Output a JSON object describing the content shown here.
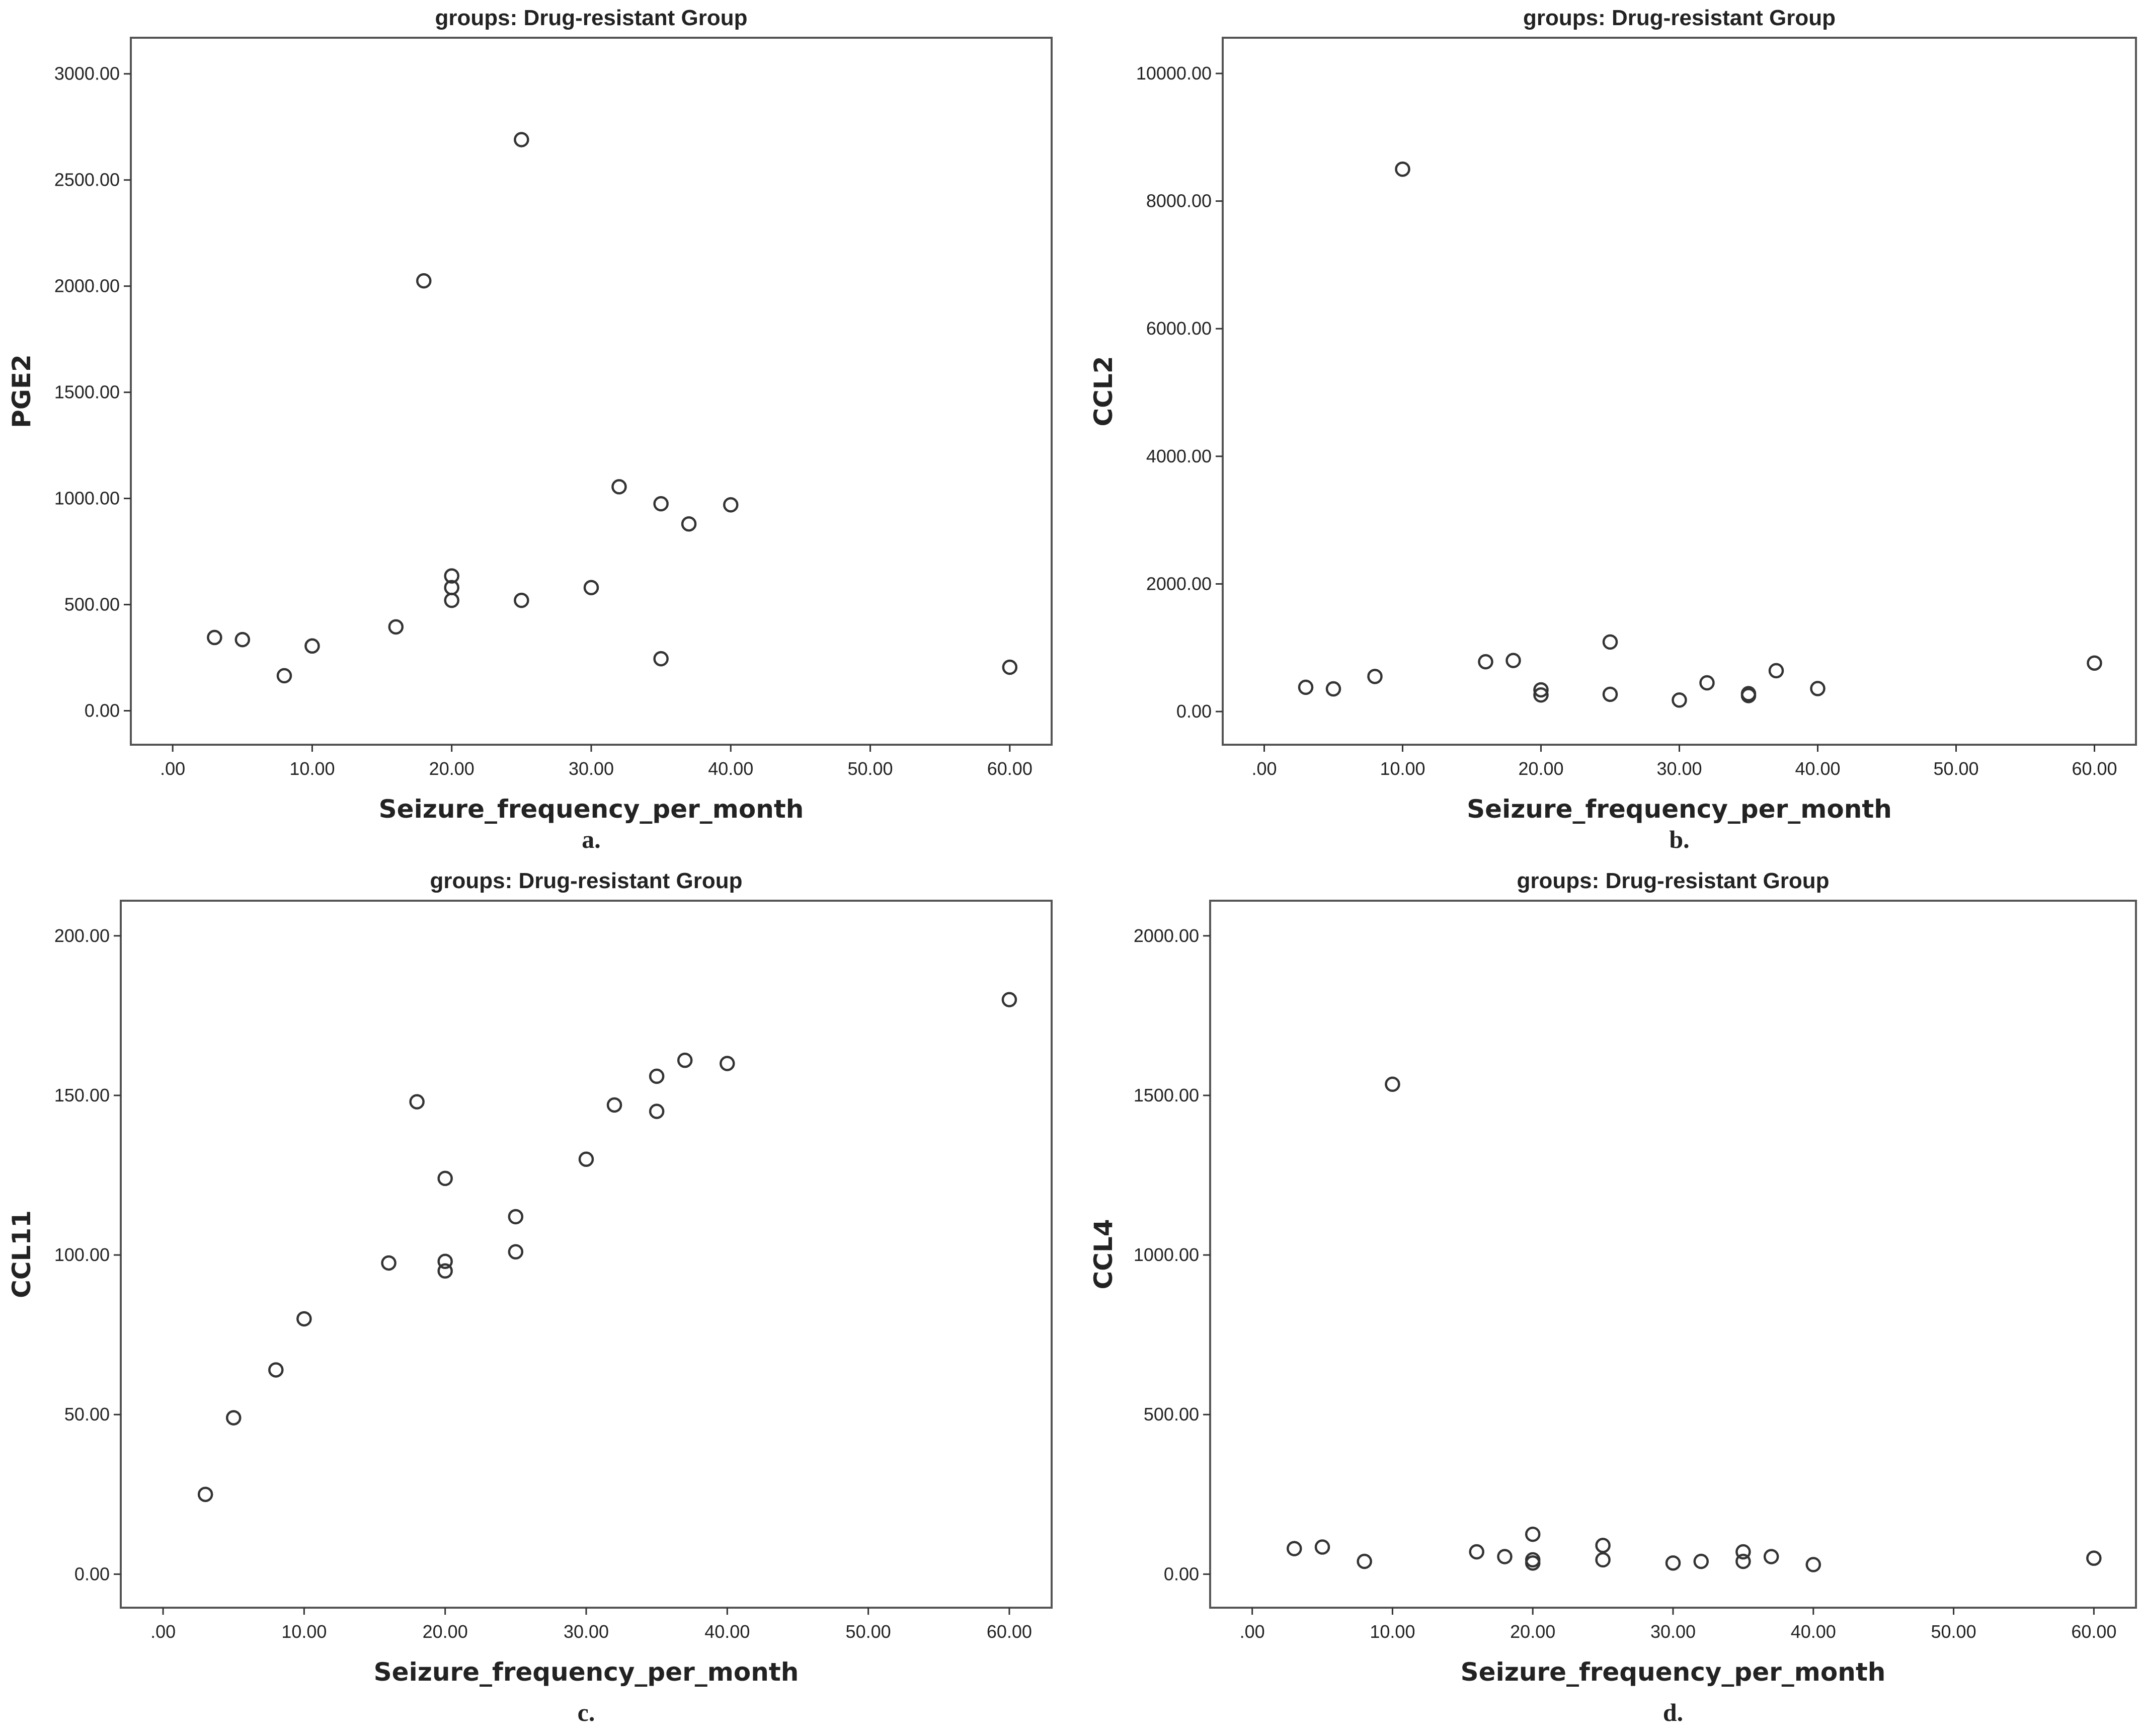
{
  "chart_data": [
    {
      "type": "scatter",
      "title": "groups: Drug-resistant Group",
      "xlabel": "Seizure_frequency_per_month",
      "ylabel": "PGE2",
      "caption": "a.",
      "xlim": [
        -3,
        63
      ],
      "ylim": [
        -160,
        3170
      ],
      "xticks": [
        0,
        10,
        20,
        30,
        40,
        50,
        60
      ],
      "xtick_labels": [
        ".00",
        "10.00",
        "20.00",
        "30.00",
        "40.00",
        "50.00",
        "60.00"
      ],
      "yticks": [
        0,
        500,
        1000,
        1500,
        2000,
        2500,
        3000
      ],
      "ytick_labels": [
        "0.00",
        "500.00",
        "1000.00",
        "1500.00",
        "2000.00",
        "2500.00",
        "3000.00"
      ],
      "points": [
        {
          "x": 3,
          "y": 345
        },
        {
          "x": 5,
          "y": 335
        },
        {
          "x": 8,
          "y": 165
        },
        {
          "x": 10,
          "y": 305
        },
        {
          "x": 16,
          "y": 395
        },
        {
          "x": 18,
          "y": 2025
        },
        {
          "x": 20,
          "y": 635
        },
        {
          "x": 20,
          "y": 580
        },
        {
          "x": 20,
          "y": 520
        },
        {
          "x": 25,
          "y": 2690
        },
        {
          "x": 25,
          "y": 520
        },
        {
          "x": 30,
          "y": 580
        },
        {
          "x": 32,
          "y": 1055
        },
        {
          "x": 35,
          "y": 975
        },
        {
          "x": 35,
          "y": 245
        },
        {
          "x": 37,
          "y": 880
        },
        {
          "x": 40,
          "y": 970
        },
        {
          "x": 60,
          "y": 205
        }
      ]
    },
    {
      "type": "scatter",
      "title": "groups: Drug-resistant Group",
      "xlabel": "Seizure_frequency_per_month",
      "ylabel": "CCL2",
      "caption": "b.",
      "xlim": [
        -3,
        63
      ],
      "ylim": [
        -520,
        10560
      ],
      "xticks": [
        0,
        10,
        20,
        30,
        40,
        50,
        60
      ],
      "xtick_labels": [
        ".00",
        "10.00",
        "20.00",
        "30.00",
        "40.00",
        "50.00",
        "60.00"
      ],
      "yticks": [
        0,
        2000,
        4000,
        6000,
        8000,
        10000
      ],
      "ytick_labels": [
        "0.00",
        "2000.00",
        "4000.00",
        "6000.00",
        "8000.00",
        "10000.00"
      ],
      "points": [
        {
          "x": 3,
          "y": 380
        },
        {
          "x": 5,
          "y": 355
        },
        {
          "x": 8,
          "y": 550
        },
        {
          "x": 10,
          "y": 8500
        },
        {
          "x": 16,
          "y": 780
        },
        {
          "x": 18,
          "y": 800
        },
        {
          "x": 20,
          "y": 340
        },
        {
          "x": 20,
          "y": 260
        },
        {
          "x": 25,
          "y": 1090
        },
        {
          "x": 25,
          "y": 270
        },
        {
          "x": 30,
          "y": 180
        },
        {
          "x": 32,
          "y": 450
        },
        {
          "x": 35,
          "y": 280
        },
        {
          "x": 35,
          "y": 250
        },
        {
          "x": 37,
          "y": 640
        },
        {
          "x": 40,
          "y": 360
        },
        {
          "x": 60,
          "y": 760
        }
      ]
    },
    {
      "type": "scatter",
      "title": "groups: Drug-resistant Group",
      "xlabel": "Seizure_frequency_per_month",
      "ylabel": "CCL11",
      "caption": "c.",
      "xlim": [
        -3,
        63
      ],
      "ylim": [
        -10.5,
        211
      ],
      "xticks": [
        0,
        10,
        20,
        30,
        40,
        50,
        60
      ],
      "xtick_labels": [
        ".00",
        "10.00",
        "20.00",
        "30.00",
        "40.00",
        "50.00",
        "60.00"
      ],
      "yticks": [
        0,
        50,
        100,
        150,
        200
      ],
      "ytick_labels": [
        "0.00",
        "50.00",
        "100.00",
        "150.00",
        "200.00"
      ],
      "points": [
        {
          "x": 3,
          "y": 25
        },
        {
          "x": 5,
          "y": 49
        },
        {
          "x": 8,
          "y": 64
        },
        {
          "x": 10,
          "y": 80
        },
        {
          "x": 16,
          "y": 97.5
        },
        {
          "x": 18,
          "y": 148
        },
        {
          "x": 20,
          "y": 124
        },
        {
          "x": 20,
          "y": 98
        },
        {
          "x": 20,
          "y": 95
        },
        {
          "x": 25,
          "y": 112
        },
        {
          "x": 25,
          "y": 101
        },
        {
          "x": 30,
          "y": 130
        },
        {
          "x": 32,
          "y": 147
        },
        {
          "x": 35,
          "y": 156
        },
        {
          "x": 35,
          "y": 145
        },
        {
          "x": 37,
          "y": 161
        },
        {
          "x": 40,
          "y": 160
        },
        {
          "x": 60,
          "y": 180
        }
      ]
    },
    {
      "type": "scatter",
      "title": "groups: Drug-resistant Group",
      "xlabel": "Seizure_frequency_per_month",
      "ylabel": "CCL4",
      "caption": "d.",
      "xlim": [
        -3,
        63
      ],
      "ylim": [
        -105,
        2110
      ],
      "xticks": [
        0,
        10,
        20,
        30,
        40,
        50,
        60
      ],
      "xtick_labels": [
        ".00",
        "10.00",
        "20.00",
        "30.00",
        "40.00",
        "50.00",
        "60.00"
      ],
      "yticks": [
        0,
        500,
        1000,
        1500,
        2000
      ],
      "ytick_labels": [
        "0.00",
        "500.00",
        "1000.00",
        "1500.00",
        "2000.00"
      ],
      "points": [
        {
          "x": 3,
          "y": 80
        },
        {
          "x": 5,
          "y": 85
        },
        {
          "x": 8,
          "y": 40
        },
        {
          "x": 10,
          "y": 1535
        },
        {
          "x": 16,
          "y": 70
        },
        {
          "x": 18,
          "y": 55
        },
        {
          "x": 20,
          "y": 125
        },
        {
          "x": 20,
          "y": 45
        },
        {
          "x": 20,
          "y": 35
        },
        {
          "x": 25,
          "y": 90
        },
        {
          "x": 25,
          "y": 45
        },
        {
          "x": 30,
          "y": 35
        },
        {
          "x": 32,
          "y": 40
        },
        {
          "x": 35,
          "y": 70
        },
        {
          "x": 35,
          "y": 40
        },
        {
          "x": 37,
          "y": 55
        },
        {
          "x": 40,
          "y": 30
        },
        {
          "x": 60,
          "y": 50
        }
      ]
    }
  ]
}
